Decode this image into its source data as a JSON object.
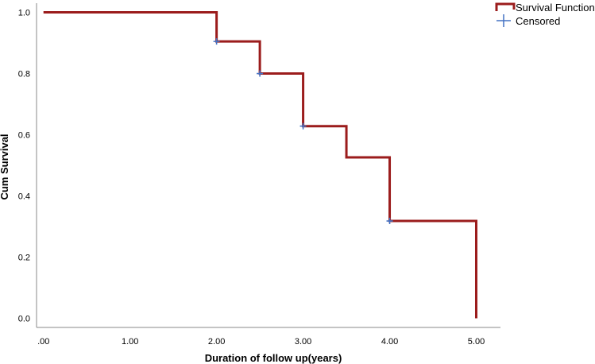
{
  "chart_data": {
    "type": "line",
    "title": "",
    "xlabel": "Duration of follow up(years)",
    "ylabel": "Cum Survival",
    "xlim": [
      -0.08,
      5.28
    ],
    "ylim": [
      -0.03,
      1.03
    ],
    "x_ticks": [
      0,
      1,
      2,
      3,
      4,
      5
    ],
    "x_tick_labels": [
      ".00",
      "1.00",
      "2.00",
      "3.00",
      "4.00",
      "5.00"
    ],
    "y_ticks": [
      0.0,
      0.2,
      0.4,
      0.6,
      0.8,
      1.0
    ],
    "y_tick_labels": [
      "0.0",
      "0.2",
      "0.4",
      "0.6",
      "0.8",
      "1.0"
    ],
    "grid": false,
    "legend_position": "top-right",
    "series": [
      {
        "name": "Survival Function",
        "style": "step",
        "color": "#9b1c1c",
        "points": [
          {
            "x": 0.0,
            "y": 1.0
          },
          {
            "x": 2.0,
            "y": 0.905
          },
          {
            "x": 2.5,
            "y": 0.8
          },
          {
            "x": 3.0,
            "y": 0.628
          },
          {
            "x": 3.5,
            "y": 0.526
          },
          {
            "x": 4.0,
            "y": 0.318
          },
          {
            "x": 5.0,
            "y": 0.0
          }
        ]
      },
      {
        "name": "Censored",
        "style": "marker",
        "marker": "+",
        "color": "#4472c4",
        "points": [
          {
            "x": 2.0,
            "y": 0.905
          },
          {
            "x": 2.5,
            "y": 0.8
          },
          {
            "x": 3.0,
            "y": 0.628
          },
          {
            "x": 4.0,
            "y": 0.318
          }
        ]
      }
    ]
  }
}
